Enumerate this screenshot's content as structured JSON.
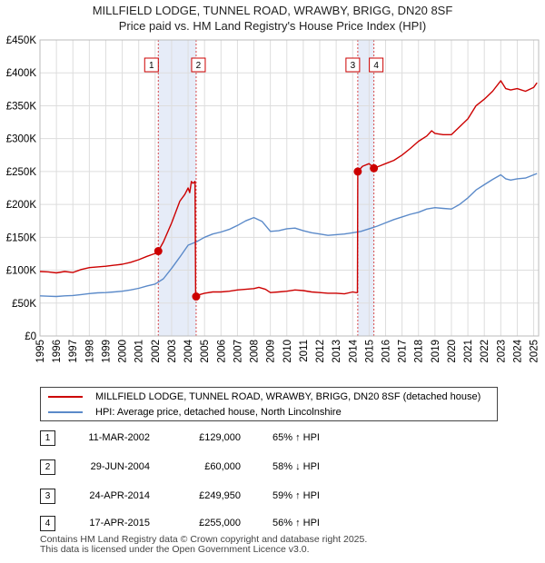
{
  "title": "MILLFIELD LODGE, TUNNEL ROAD, WRAWBY, BRIGG, DN20 8SF",
  "subtitle": "Price paid vs. HM Land Registry's House Price Index (HPI)",
  "chart_data": {
    "type": "line",
    "title": "MILLFIELD LODGE, TUNNEL ROAD, WRAWBY, BRIGG, DN20 8SF",
    "subtitle": "Price paid vs. HM Land Registry's House Price Index (HPI)",
    "xlim": [
      1995,
      2025.3
    ],
    "ylim": [
      0,
      450000
    ],
    "x_ticks": [
      "1995",
      "1996",
      "1997",
      "1998",
      "1999",
      "2000",
      "2001",
      "2002",
      "2003",
      "2004",
      "2005",
      "2006",
      "2007",
      "2008",
      "2009",
      "2010",
      "2011",
      "2012",
      "2013",
      "2014",
      "2015",
      "2016",
      "2017",
      "2018",
      "2019",
      "2020",
      "2021",
      "2022",
      "2023",
      "2024",
      "2025"
    ],
    "y_ticks": [
      {
        "value": 0,
        "label": "£0"
      },
      {
        "value": 50000,
        "label": "£50K"
      },
      {
        "value": 100000,
        "label": "£100K"
      },
      {
        "value": 150000,
        "label": "£150K"
      },
      {
        "value": 200000,
        "label": "£200K"
      },
      {
        "value": 250000,
        "label": "£250K"
      },
      {
        "value": 300000,
        "label": "£300K"
      },
      {
        "value": 350000,
        "label": "£350K"
      },
      {
        "value": 400000,
        "label": "£400K"
      },
      {
        "value": 450000,
        "label": "£450K"
      }
    ],
    "grid": true,
    "shaded_ranges": [
      [
        2002.19,
        2004.49
      ],
      [
        2014.31,
        2015.29
      ]
    ],
    "series": [
      {
        "name": "MILLFIELD LODGE, TUNNEL ROAD, WRAWBY, BRIGG, DN20 8SF (detached house)",
        "color": "#cc0000",
        "points": [
          [
            1995,
            98000
          ],
          [
            1995.5,
            97500
          ],
          [
            1996,
            96000
          ],
          [
            1996.5,
            98000
          ],
          [
            1997,
            96500
          ],
          [
            1997.5,
            101000
          ],
          [
            1998,
            104000
          ],
          [
            1998.5,
            105000
          ],
          [
            1999,
            106000
          ],
          [
            1999.5,
            107500
          ],
          [
            2000,
            109000
          ],
          [
            2000.5,
            112000
          ],
          [
            2001,
            116000
          ],
          [
            2001.5,
            121000
          ],
          [
            2002.0,
            125500
          ],
          [
            2002.19,
            129000
          ],
          [
            2002.5,
            143000
          ],
          [
            2003.0,
            172000
          ],
          [
            2003.5,
            205000
          ],
          [
            2003.8,
            215000
          ],
          [
            2004.0,
            225000
          ],
          [
            2004.1,
            218000
          ],
          [
            2004.2,
            235000
          ],
          [
            2004.3,
            232000
          ],
          [
            2004.42,
            235000
          ],
          [
            2004.46,
            60000
          ],
          [
            2004.49,
            60000
          ],
          [
            2004.7,
            63000
          ],
          [
            2005,
            65000
          ],
          [
            2005.5,
            67000
          ],
          [
            2006,
            67000
          ],
          [
            2006.5,
            68000
          ],
          [
            2007,
            70000
          ],
          [
            2007.5,
            71000
          ],
          [
            2008,
            72000
          ],
          [
            2008.3,
            74000
          ],
          [
            2008.7,
            71000
          ],
          [
            2009,
            66000
          ],
          [
            2009.5,
            67000
          ],
          [
            2010,
            68000
          ],
          [
            2010.5,
            70000
          ],
          [
            2011,
            69000
          ],
          [
            2011.5,
            67000
          ],
          [
            2012,
            66000
          ],
          [
            2012.5,
            65000
          ],
          [
            2013,
            65000
          ],
          [
            2013.5,
            64000
          ],
          [
            2014.0,
            67000
          ],
          [
            2014.2,
            66000
          ],
          [
            2014.29,
            66000
          ],
          [
            2014.31,
            249950
          ],
          [
            2014.6,
            258000
          ],
          [
            2015.0,
            262000
          ],
          [
            2015.29,
            255000
          ],
          [
            2015.6,
            258000
          ],
          [
            2016,
            262000
          ],
          [
            2016.5,
            267000
          ],
          [
            2017,
            275000
          ],
          [
            2017.5,
            285000
          ],
          [
            2018,
            296000
          ],
          [
            2018.5,
            304000
          ],
          [
            2018.8,
            312000
          ],
          [
            2019,
            308000
          ],
          [
            2019.5,
            306000
          ],
          [
            2020,
            306000
          ],
          [
            2020.5,
            318000
          ],
          [
            2021,
            330000
          ],
          [
            2021.5,
            350000
          ],
          [
            2022,
            360000
          ],
          [
            2022.5,
            372000
          ],
          [
            2023,
            388000
          ],
          [
            2023.3,
            376000
          ],
          [
            2023.6,
            374000
          ],
          [
            2024,
            376000
          ],
          [
            2024.5,
            372000
          ],
          [
            2025,
            378000
          ],
          [
            2025.2,
            385000
          ]
        ]
      },
      {
        "name": "HPI: Average price, detached house, North Lincolnshire",
        "color": "#5b8ac9",
        "points": [
          [
            1995,
            61000
          ],
          [
            1995.5,
            60500
          ],
          [
            1996,
            60000
          ],
          [
            1996.5,
            61000
          ],
          [
            1997,
            61500
          ],
          [
            1997.5,
            63000
          ],
          [
            1998,
            64500
          ],
          [
            1998.5,
            65500
          ],
          [
            1999,
            66000
          ],
          [
            1999.5,
            67000
          ],
          [
            2000,
            68000
          ],
          [
            2000.5,
            70000
          ],
          [
            2001,
            72500
          ],
          [
            2001.5,
            76000
          ],
          [
            2002.0,
            79000
          ],
          [
            2002.5,
            87000
          ],
          [
            2003.0,
            103000
          ],
          [
            2003.5,
            120000
          ],
          [
            2004.0,
            138000
          ],
          [
            2004.5,
            143000
          ],
          [
            2005,
            150000
          ],
          [
            2005.5,
            155000
          ],
          [
            2006,
            158000
          ],
          [
            2006.5,
            162000
          ],
          [
            2007,
            168000
          ],
          [
            2007.5,
            175000
          ],
          [
            2008,
            180000
          ],
          [
            2008.5,
            174000
          ],
          [
            2009,
            159000
          ],
          [
            2009.5,
            160000
          ],
          [
            2010,
            163000
          ],
          [
            2010.5,
            164000
          ],
          [
            2011,
            160000
          ],
          [
            2011.5,
            157000
          ],
          [
            2012,
            155000
          ],
          [
            2012.5,
            153000
          ],
          [
            2013,
            154000
          ],
          [
            2013.5,
            155000
          ],
          [
            2014.0,
            157000
          ],
          [
            2014.5,
            159000
          ],
          [
            2015.0,
            163000
          ],
          [
            2015.5,
            167000
          ],
          [
            2016,
            172000
          ],
          [
            2016.5,
            177000
          ],
          [
            2017,
            181000
          ],
          [
            2017.5,
            185000
          ],
          [
            2018,
            188000
          ],
          [
            2018.5,
            193000
          ],
          [
            2019,
            195000
          ],
          [
            2019.5,
            194000
          ],
          [
            2020,
            193000
          ],
          [
            2020.5,
            200000
          ],
          [
            2021,
            210000
          ],
          [
            2021.5,
            222000
          ],
          [
            2022,
            230000
          ],
          [
            2022.5,
            238000
          ],
          [
            2023,
            245000
          ],
          [
            2023.3,
            239000
          ],
          [
            2023.6,
            237000
          ],
          [
            2024,
            239000
          ],
          [
            2024.5,
            240000
          ],
          [
            2025,
            245000
          ],
          [
            2025.2,
            247000
          ]
        ]
      }
    ],
    "transactions": [
      {
        "id": "1",
        "x": 2002.19,
        "price_value": 129000
      },
      {
        "id": "2",
        "x": 2004.49,
        "price_value": 60000
      },
      {
        "id": "3",
        "x": 2014.31,
        "price_value": 249950
      },
      {
        "id": "4",
        "x": 2015.29,
        "price_value": 255000
      }
    ]
  },
  "legend": {
    "property_label": "MILLFIELD LODGE, TUNNEL ROAD, WRAWBY, BRIGG, DN20 8SF (detached house)",
    "hpi_label": "HPI: Average price, detached house, North Lincolnshire",
    "property_color": "#cc0000",
    "hpi_color": "#5b8ac9"
  },
  "transactions_table": [
    {
      "num": "1",
      "date": "11-MAR-2002",
      "price": "£129,000",
      "hpi": "65% ↑ HPI"
    },
    {
      "num": "2",
      "date": "29-JUN-2004",
      "price": "£60,000",
      "hpi": "58% ↓ HPI"
    },
    {
      "num": "3",
      "date": "24-APR-2014",
      "price": "£249,950",
      "hpi": "59% ↑ HPI"
    },
    {
      "num": "4",
      "date": "17-APR-2015",
      "price": "£255,000",
      "hpi": "56% ↑ HPI"
    }
  ],
  "footer": {
    "line1": "Contains HM Land Registry data © Crown copyright and database right 2025.",
    "line2": "This data is licensed under the Open Government Licence v3.0."
  }
}
